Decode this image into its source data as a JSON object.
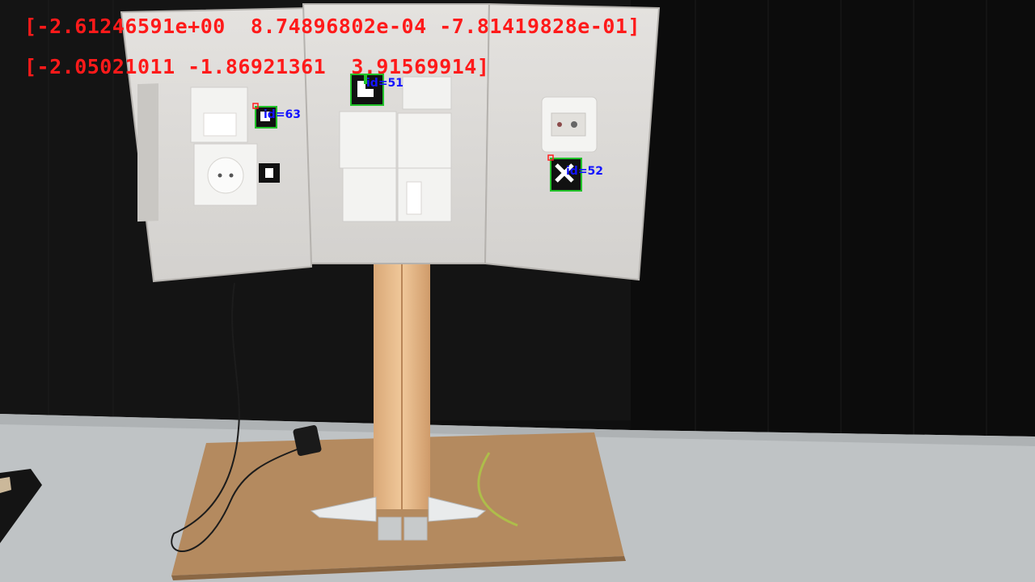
{
  "overlay": {
    "rotation_vector": "[-2.61246591e+00  8.74896802e-04 -7.81419828e-01]",
    "translation_vector": "[-2.05021011 -1.86921361  3.91569914]"
  },
  "markers": [
    {
      "label": "id=51"
    },
    {
      "label": "id=63"
    },
    {
      "label": "id=52"
    }
  ],
  "colors": {
    "overlay_text": "#ff1a1a",
    "marker_label": "#1414ff",
    "marker_outline": "#22c22a",
    "corner_dot": "#ff2020"
  }
}
